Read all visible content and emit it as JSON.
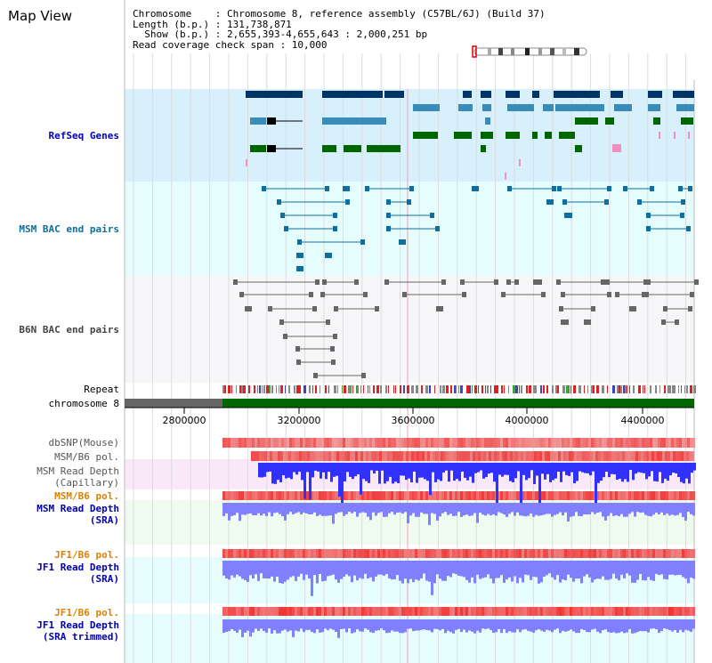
{
  "title": "Map View",
  "info": {
    "line1": "Chromosome    : Chromosome 8, reference assembly (C57BL/6J) (Build 37)",
    "line2": "Length (b.p.) : 131,738,871",
    "line3": "  Show (b.p.) : 2,655,393-4,655,643 : 2,000,251 bp",
    "line4": "Read coverage check span : 10,000"
  },
  "tracks": {
    "refseq": "RefSeq Genes",
    "msm_bac": "MSM BAC end pairs",
    "b6n_bac": "B6N BAC end pairs",
    "repeat": "Repeat",
    "chromosome": "chromosome 8",
    "dbsnp": "dbSNP(Mouse)",
    "msm_b6_pol_1": "MSM/B6 pol.",
    "msm_depth_cap_1": "MSM Read Depth",
    "msm_depth_cap_2": "(Capillary)",
    "msm_b6_pol_2": "MSM/B6 pol.",
    "msm_depth_sra_1": "MSM Read Depth",
    "msm_depth_sra_2": "(SRA)",
    "jf1_pol_1": "JF1/B6 pol.",
    "jf1_depth_1": "JF1 Read Depth",
    "jf1_depth_2": "(SRA)",
    "jf1_pol_2": "JF1/B6 pol.",
    "jf1_trim_1": "JF1 Read Depth",
    "jf1_trim_2": "(SRA trimmed)"
  },
  "axis": {
    "ticks": [
      "2800000",
      "3200000",
      "3600000",
      "4000000",
      "4400000"
    ]
  },
  "colors": {
    "refseq_bg": "#d8f0fc",
    "msm_bac_bg": "#e6fdfd",
    "b6n_bg": "#f6f6f8",
    "gene_dark": "#003366",
    "gene_mid": "#3a8cb8",
    "gene_green": "#006600",
    "bac_teal": "#0e6ea0",
    "bac_gray": "#666666",
    "chrom_green": "#006600",
    "depth_blue": "#3030ff",
    "sra_blue": "#8080ff",
    "pol_red": "#f08080"
  }
}
